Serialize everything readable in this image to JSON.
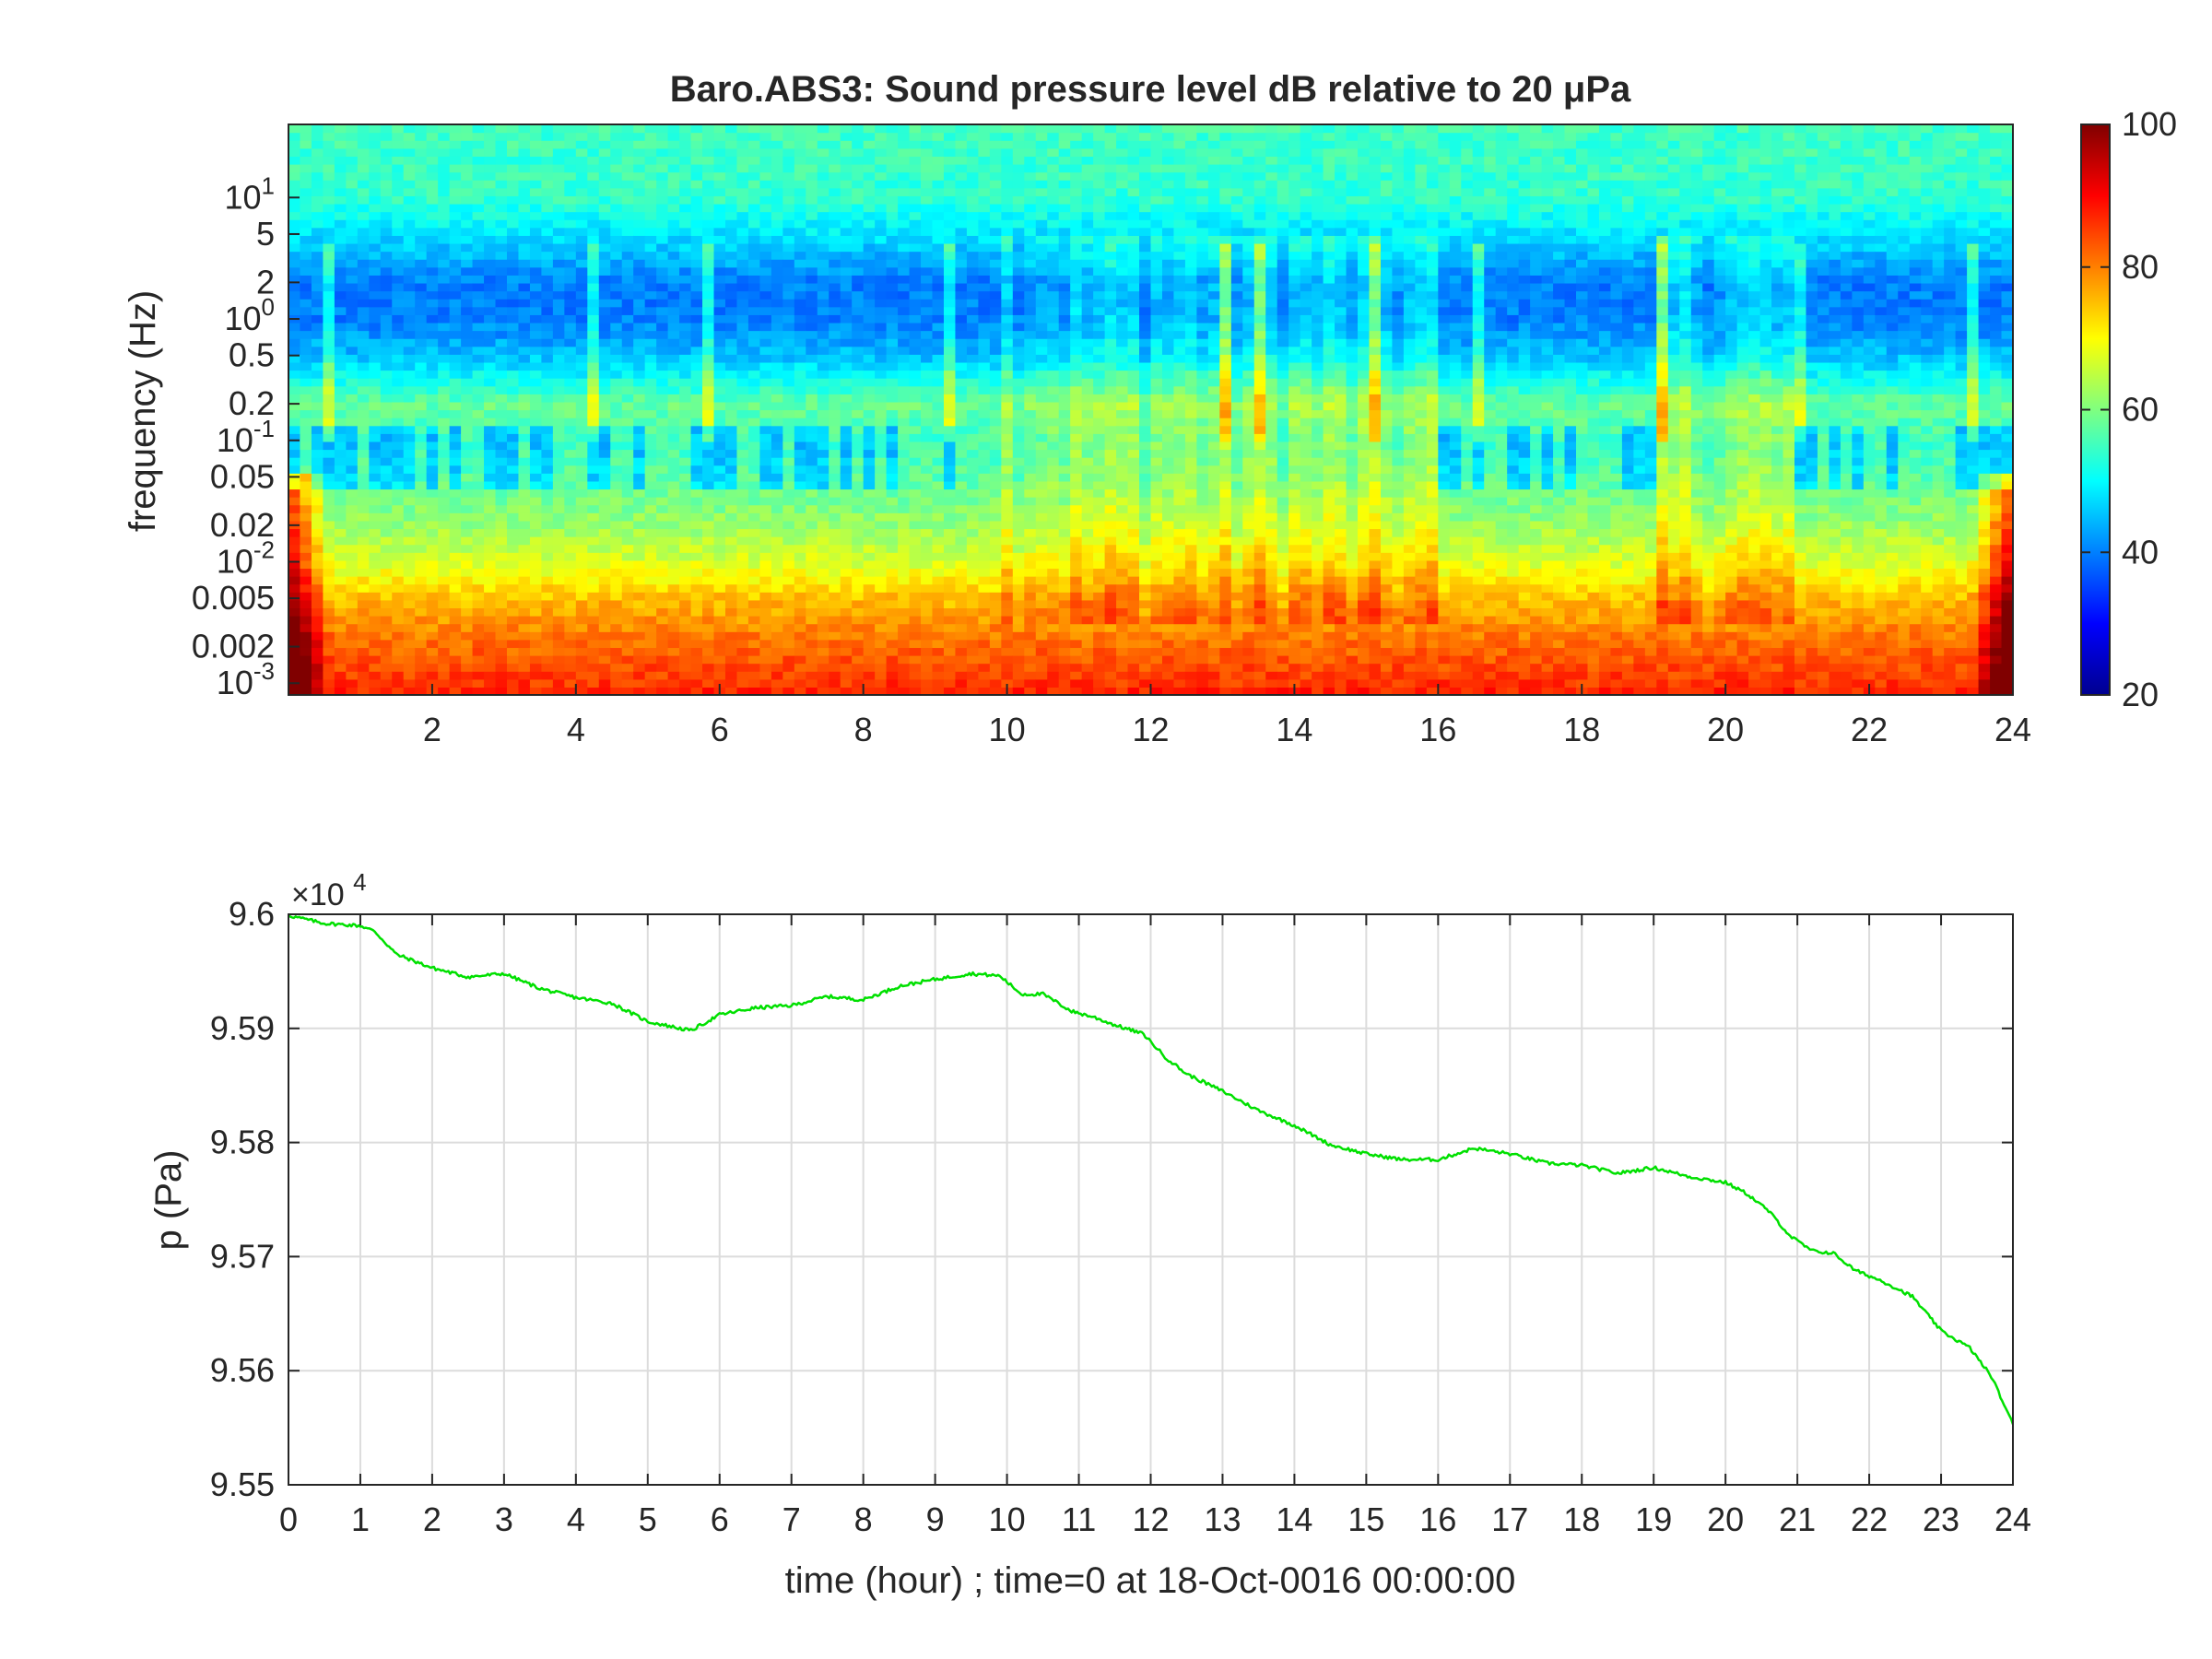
{
  "chart_data": [
    {
      "type": "heatmap",
      "title": "Baro.ABS3: Sound pressure level dB relative to 20 μPa",
      "ylabel": "frequency (Hz)",
      "xlabel": "",
      "x_range": [
        0,
        24
      ],
      "y_scale": "log",
      "y_range": [
        0.0008,
        40
      ],
      "x_ticks": [
        2,
        4,
        6,
        8,
        10,
        12,
        14,
        16,
        18,
        20,
        22,
        24
      ],
      "x_tick_labels": [
        "2",
        "4",
        "6",
        "8",
        "10",
        "12",
        "14",
        "16",
        "18",
        "20",
        "22",
        "24"
      ],
      "y_ticks": [
        0.001,
        0.002,
        0.005,
        0.01,
        0.02,
        0.05,
        0.1,
        0.2,
        0.5,
        1,
        2,
        5,
        10
      ],
      "y_tick_labels": [
        {
          "base": "10",
          "exp": "-3"
        },
        {
          "base": "0.002",
          "exp": ""
        },
        {
          "base": "0.005",
          "exp": ""
        },
        {
          "base": "10",
          "exp": "-2"
        },
        {
          "base": "0.02",
          "exp": ""
        },
        {
          "base": "0.05",
          "exp": ""
        },
        {
          "base": "10",
          "exp": "-1"
        },
        {
          "base": "0.2",
          "exp": ""
        },
        {
          "base": "0.5",
          "exp": ""
        },
        {
          "base": "10",
          "exp": "0"
        },
        {
          "base": "2",
          "exp": ""
        },
        {
          "base": "5",
          "exp": ""
        },
        {
          "base": "10",
          "exp": "1"
        }
      ],
      "colormap": "jet",
      "colorbar": {
        "range": [
          20,
          100
        ],
        "ticks": [
          20,
          40,
          60,
          80,
          100
        ],
        "tick_labels": [
          "20",
          "40",
          "60",
          "80",
          "100"
        ]
      },
      "level_profile_by_frequency": {
        "frequency_hz": [
          0.0008,
          0.001,
          0.002,
          0.005,
          0.01,
          0.02,
          0.05,
          0.1,
          0.2,
          0.5,
          1,
          2,
          5,
          10,
          40
        ],
        "level_db": [
          88,
          86,
          82,
          75,
          67,
          62,
          57,
          55,
          58,
          45,
          40,
          40,
          48,
          54,
          55
        ]
      },
      "active_periods_hours": [
        [
          10,
          16
        ],
        [
          19,
          21
        ]
      ],
      "quiet_band_hz": [
        0.04,
        0.13
      ]
    },
    {
      "type": "line",
      "xlabel": "time (hour) ; time=0 at 18-Oct-0016 00:00:00",
      "ylabel": "p (Pa)",
      "x_range": [
        0,
        24
      ],
      "y_range": [
        95500,
        96000
      ],
      "y_exponent_label": {
        "base": "×10",
        "exp": "4"
      },
      "x_ticks": [
        0,
        1,
        2,
        3,
        4,
        5,
        6,
        7,
        8,
        9,
        10,
        11,
        12,
        13,
        14,
        15,
        16,
        17,
        18,
        19,
        20,
        21,
        22,
        23,
        24
      ],
      "x_tick_labels": [
        "0",
        "1",
        "2",
        "3",
        "4",
        "5",
        "6",
        "7",
        "8",
        "9",
        "10",
        "11",
        "12",
        "13",
        "14",
        "15",
        "16",
        "17",
        "18",
        "19",
        "20",
        "21",
        "22",
        "23",
        "24"
      ],
      "y_ticks": [
        95500,
        95600,
        95700,
        95800,
        95900,
        96000
      ],
      "y_tick_labels": [
        "9.55",
        "9.56",
        "9.57",
        "9.58",
        "9.59",
        "9.6"
      ],
      "grid": true,
      "line_color": "#00e000",
      "series": [
        {
          "x": [
            0,
            0.5,
            1,
            1.2,
            1.5,
            2,
            2.5,
            3,
            3.5,
            4,
            4.5,
            5,
            5.6,
            6,
            6.5,
            7,
            7.5,
            8,
            8.5,
            9,
            9.5,
            9.9,
            10.2,
            10.5,
            10.9,
            11.2,
            11.5,
            11.9,
            12.2,
            12.5,
            13,
            13.5,
            14,
            14.5,
            15,
            15.5,
            16,
            16.5,
            17,
            17.5,
            18,
            18.5,
            19,
            19.5,
            20,
            20.3,
            20.6,
            20.9,
            21.2,
            21.5,
            21.8,
            22.2,
            22.6,
            23,
            23.4,
            23.7,
            24
          ],
          "y": [
            95999,
            95992,
            95990,
            95985,
            95965,
            95953,
            95945,
            95948,
            95935,
            95927,
            95922,
            95906,
            95898,
            95912,
            95918,
            95920,
            95928,
            95925,
            95937,
            95943,
            95948,
            95946,
            95930,
            95930,
            95915,
            95910,
            95903,
            95895,
            95875,
            95860,
            95845,
            95828,
            95815,
            95798,
            95790,
            95785,
            95785,
            95795,
            95790,
            95782,
            95780,
            95773,
            95778,
            95770,
            95765,
            95755,
            95740,
            95718,
            95705,
            95703,
            95688,
            95678,
            95665,
            95635,
            95620,
            95595,
            95553
          ]
        }
      ]
    }
  ]
}
